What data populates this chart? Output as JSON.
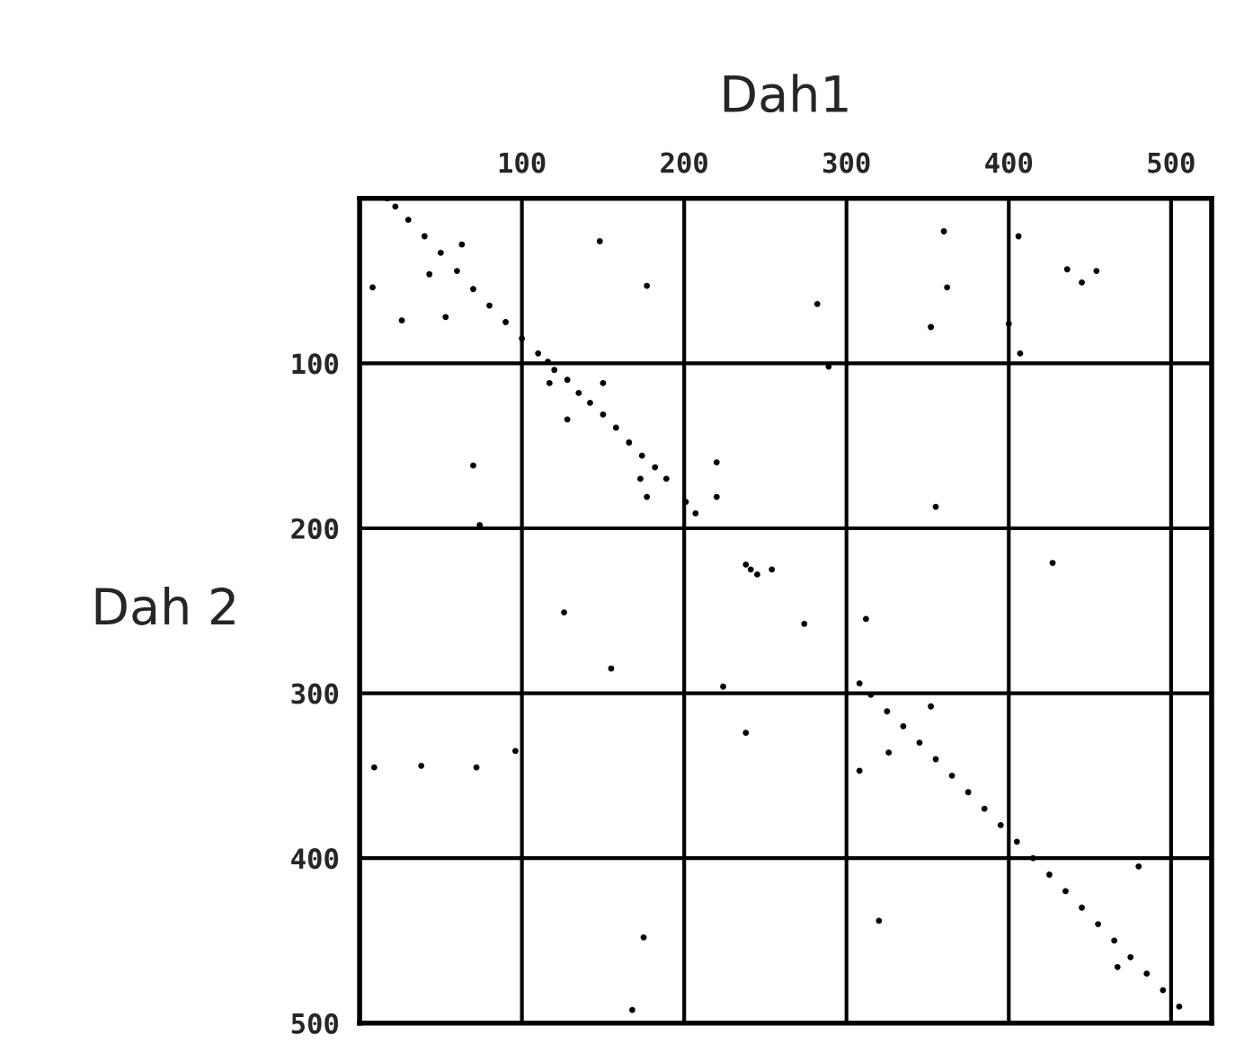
{
  "chart_data": {
    "type": "scatter",
    "xlabel": "Dah1",
    "ylabel": "Dah 2",
    "xlim": [
      0,
      525
    ],
    "ylim": [
      500,
      0
    ],
    "xticks": [
      100,
      200,
      300,
      400,
      500
    ],
    "yticks": [
      100,
      200,
      300,
      400,
      500
    ],
    "grid": true,
    "marker": "circle",
    "series": [
      {
        "color": "#000000",
        "x": [
          17,
          22,
          30,
          40,
          50,
          60,
          70,
          80,
          90,
          100,
          110,
          116,
          120,
          128,
          135,
          142,
          150,
          158,
          166,
          174,
          182,
          189,
          201,
          207,
          238,
          241,
          245,
          308,
          315,
          325,
          335,
          345,
          355,
          365,
          375,
          385,
          395,
          405,
          415,
          425,
          435,
          445,
          455,
          465,
          475,
          485,
          495,
          505,
          8,
          26,
          43,
          53,
          63,
          148,
          177,
          282,
          360,
          362,
          352,
          406,
          436,
          445,
          454,
          400,
          407,
          289,
          117,
          150,
          128,
          70,
          74,
          173,
          177,
          220,
          220,
          355,
          427,
          254,
          126,
          274,
          312,
          155,
          224,
          9,
          38,
          72,
          96,
          238,
          352,
          326,
          308,
          320,
          175,
          168,
          480,
          467
        ],
        "values": [
          0,
          5,
          13,
          23,
          33,
          44,
          55,
          65,
          75,
          85,
          94,
          99,
          104,
          110,
          118,
          124,
          131,
          139,
          148,
          156,
          163,
          170,
          184,
          191,
          222,
          225,
          228,
          294,
          301,
          311,
          320,
          330,
          340,
          350,
          360,
          370,
          380,
          390,
          400,
          410,
          420,
          430,
          440,
          450,
          460,
          470,
          480,
          490,
          54,
          74,
          46,
          72,
          28,
          26,
          53,
          64,
          20,
          54,
          78,
          23,
          43,
          51,
          44,
          76,
          94,
          102,
          112,
          112,
          134,
          162,
          198,
          170,
          181,
          160,
          181,
          187,
          221,
          225,
          251,
          258,
          255,
          285,
          296,
          345,
          344,
          345,
          335,
          324,
          308,
          336,
          347,
          438,
          448,
          492,
          405,
          466
        ]
      }
    ]
  }
}
